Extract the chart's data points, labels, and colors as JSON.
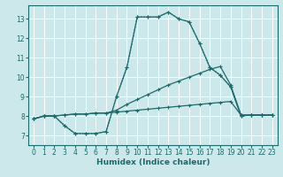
{
  "xlabel": "Humidex (Indice chaleur)",
  "bg_color": "#cce8ea",
  "grid_color": "#ffffff",
  "line_color": "#1a6b6b",
  "xlim": [
    -0.5,
    23.5
  ],
  "ylim": [
    6.5,
    13.7
  ],
  "xticks": [
    0,
    1,
    2,
    3,
    4,
    5,
    6,
    7,
    8,
    9,
    10,
    11,
    12,
    13,
    14,
    15,
    16,
    17,
    18,
    19,
    20,
    21,
    22,
    23
  ],
  "yticks": [
    7,
    8,
    9,
    10,
    11,
    12,
    13
  ],
  "line_flat_x": [
    0,
    1,
    2,
    3,
    4,
    5,
    6,
    7,
    8,
    9,
    10,
    11,
    12,
    13,
    14,
    15,
    16,
    17,
    18,
    19,
    20,
    21,
    22,
    23
  ],
  "line_flat_y": [
    7.85,
    8.0,
    8.0,
    8.05,
    8.1,
    8.1,
    8.15,
    8.15,
    8.2,
    8.25,
    8.3,
    8.35,
    8.4,
    8.45,
    8.5,
    8.55,
    8.6,
    8.65,
    8.7,
    8.75,
    8.05,
    8.05,
    8.05,
    8.05
  ],
  "line_mid_x": [
    0,
    1,
    2,
    3,
    4,
    5,
    6,
    7,
    8,
    9,
    10,
    11,
    12,
    13,
    14,
    15,
    16,
    17,
    18,
    19,
    20,
    21,
    22,
    23
  ],
  "line_mid_y": [
    7.85,
    8.0,
    8.0,
    8.05,
    8.1,
    8.1,
    8.15,
    8.15,
    8.3,
    8.6,
    8.85,
    9.1,
    9.35,
    9.6,
    9.8,
    10.0,
    10.2,
    10.4,
    10.55,
    9.6,
    8.05,
    8.05,
    8.05,
    8.05
  ],
  "line_dotted_x": [
    0,
    1,
    2,
    3,
    4,
    5,
    6,
    7,
    8,
    9,
    10,
    11,
    12,
    13,
    14,
    15,
    16,
    17,
    18,
    19,
    20,
    21,
    22,
    23
  ],
  "line_dotted_y": [
    7.85,
    8.0,
    8.0,
    7.5,
    7.1,
    7.1,
    7.1,
    7.2,
    9.0,
    10.5,
    13.1,
    13.1,
    13.1,
    13.35,
    13.0,
    12.85,
    11.75,
    10.5,
    10.1,
    9.5,
    8.0,
    8.05,
    8.05,
    8.05
  ],
  "line_solid_x": [
    0,
    1,
    2,
    3,
    4,
    5,
    6,
    7,
    8,
    9,
    10,
    11,
    12,
    13,
    14,
    15,
    16,
    17,
    18,
    19,
    20,
    21,
    22,
    23
  ],
  "line_solid_y": [
    7.85,
    8.0,
    8.0,
    7.5,
    7.1,
    7.1,
    7.1,
    7.2,
    9.0,
    10.5,
    13.1,
    13.1,
    13.1,
    13.35,
    13.0,
    12.85,
    11.75,
    10.5,
    10.1,
    9.5,
    8.0,
    8.05,
    8.05,
    8.05
  ]
}
